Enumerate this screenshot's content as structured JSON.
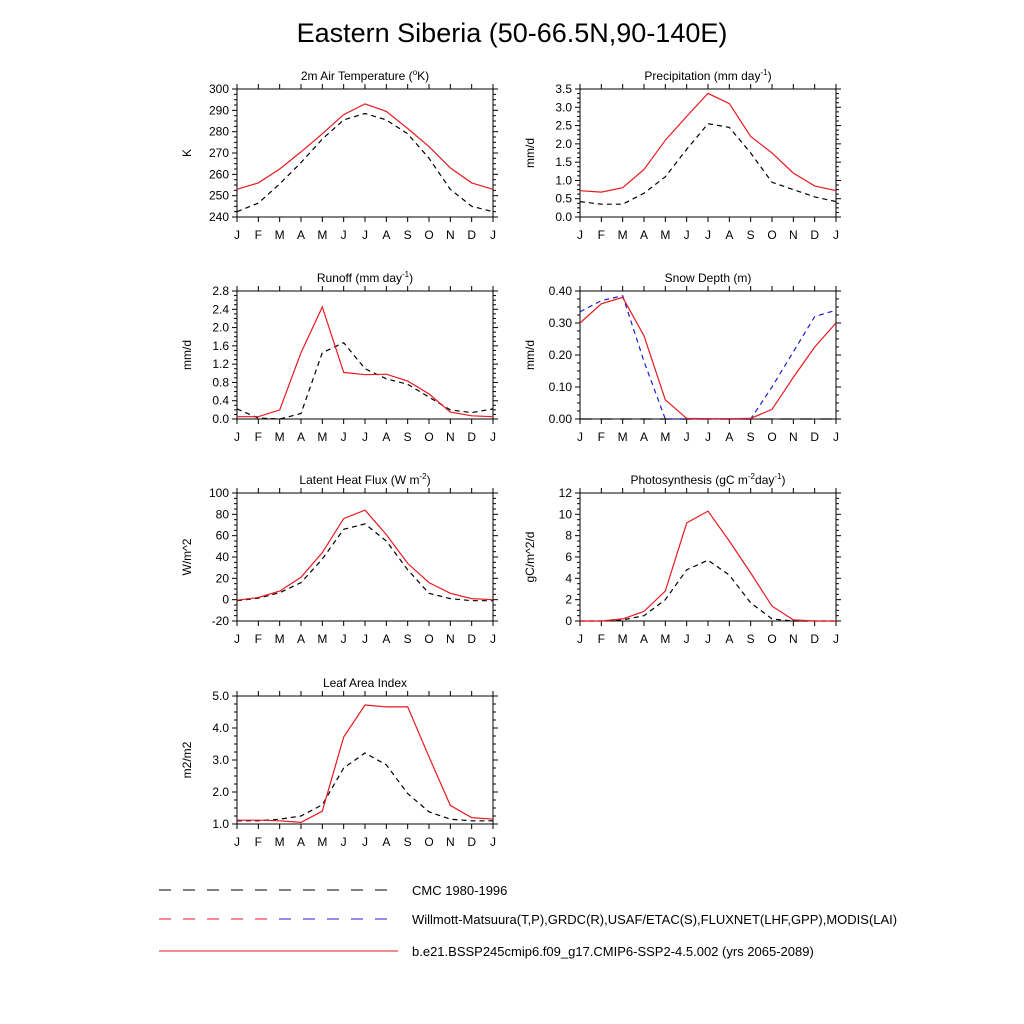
{
  "page": {
    "title": "Eastern Siberia (50-66.5N,90-140E)"
  },
  "colors": {
    "cmc": "#000000",
    "obs_black": "#000000",
    "obs_blue": "#1f1fd6",
    "model": "#e8191f"
  },
  "months": [
    "J",
    "F",
    "M",
    "A",
    "M",
    "J",
    "J",
    "A",
    "S",
    "O",
    "N",
    "D",
    "J"
  ],
  "legend": {
    "cmc_label": "CMC 1980-1996",
    "obs_label": "Willmott-Matsuura(T,P),GRDC(R),USAF/ETAC(S),FLUXNET(LHF,GPP),MODIS(LAI)",
    "model_label": "b.e21.BSSP245cmip6.f09_g17.CMIP6-SSP2-4.5.002 (yrs 2065-2089)"
  },
  "chart_data": [
    {
      "id": "temp",
      "type": "line",
      "title_parts": [
        {
          "t": "2m Air Temperature ("
        },
        {
          "t": "o",
          "sup": true
        },
        {
          "t": "K)"
        }
      ],
      "ylabel": "K",
      "ylim": [
        240,
        300
      ],
      "yticks": [
        240,
        250,
        260,
        270,
        280,
        290,
        300
      ],
      "ytick_labels": [
        "240",
        "250",
        "260",
        "270",
        "280",
        "290",
        "300"
      ],
      "series": [
        {
          "role": "obs",
          "style": "dash",
          "color": "black",
          "values": [
            242.5,
            246.5,
            255.5,
            265.5,
            276.5,
            285.5,
            288.5,
            285.5,
            279,
            267.5,
            253,
            245,
            242.5
          ]
        },
        {
          "role": "model",
          "style": "solid",
          "color": "model",
          "values": [
            253,
            256,
            262.5,
            270.5,
            279,
            288,
            293,
            289.5,
            281.5,
            273,
            263,
            256,
            253
          ]
        }
      ]
    },
    {
      "id": "precip",
      "type": "line",
      "title_parts": [
        {
          "t": "Precipitation (mm day"
        },
        {
          "t": "-1",
          "sup": true
        },
        {
          "t": ")"
        }
      ],
      "ylabel": "mm/d",
      "ylim": [
        0,
        3.5
      ],
      "yticks": [
        0,
        0.5,
        1.0,
        1.5,
        2.0,
        2.5,
        3.0,
        3.5
      ],
      "ytick_labels": [
        "0.0",
        "0.5",
        "1.0",
        "1.5",
        "2.0",
        "2.5",
        "3.0",
        "3.5"
      ],
      "series": [
        {
          "role": "obs",
          "style": "dash",
          "color": "black",
          "values": [
            0.42,
            0.35,
            0.35,
            0.65,
            1.1,
            1.85,
            2.55,
            2.45,
            1.75,
            0.95,
            0.75,
            0.55,
            0.42
          ]
        },
        {
          "role": "model",
          "style": "solid",
          "color": "model",
          "values": [
            0.72,
            0.68,
            0.8,
            1.3,
            2.1,
            2.75,
            3.38,
            3.1,
            2.2,
            1.75,
            1.2,
            0.85,
            0.72
          ]
        }
      ]
    },
    {
      "id": "runoff",
      "type": "line",
      "title_parts": [
        {
          "t": "Runoff (mm day"
        },
        {
          "t": "-1",
          "sup": true
        },
        {
          "t": ")"
        }
      ],
      "ylabel": "mm/d",
      "ylim": [
        0,
        2.8
      ],
      "yticks": [
        0,
        0.4,
        0.8,
        1.2,
        1.6,
        2.0,
        2.4,
        2.8
      ],
      "ytick_labels": [
        "0.0",
        "0.4",
        "0.8",
        "1.2",
        "1.6",
        "2.0",
        "2.4",
        "2.8"
      ],
      "series": [
        {
          "role": "obs",
          "style": "dash",
          "color": "black",
          "values": [
            0.22,
            0.02,
            0.0,
            0.12,
            1.45,
            1.67,
            1.1,
            0.88,
            0.76,
            0.48,
            0.2,
            0.14,
            0.22
          ]
        },
        {
          "role": "model",
          "style": "solid",
          "color": "model",
          "values": [
            0.05,
            0.05,
            0.2,
            1.45,
            2.45,
            1.02,
            0.97,
            0.98,
            0.83,
            0.55,
            0.15,
            0.07,
            0.05
          ]
        }
      ]
    },
    {
      "id": "snow",
      "type": "line",
      "title_parts": [
        {
          "t": "Snow Depth (m)"
        }
      ],
      "ylabel": "mm/d",
      "ylim": [
        0,
        0.4
      ],
      "yticks": [
        0,
        0.1,
        0.2,
        0.3,
        0.4
      ],
      "ytick_labels": [
        "0.00",
        "0.10",
        "0.20",
        "0.30",
        "0.40"
      ],
      "series": [
        {
          "role": "cmc",
          "style": "longdash",
          "color": "black",
          "values": [
            0,
            0,
            0,
            0,
            0,
            0,
            0,
            0,
            0,
            0,
            0,
            0,
            0
          ]
        },
        {
          "role": "obs",
          "style": "dash",
          "color": "obs_blue",
          "values": [
            0.335,
            0.37,
            0.385,
            0.18,
            0.0,
            0.0,
            0.0,
            0.0,
            0.0,
            0.1,
            0.21,
            0.32,
            0.34
          ]
        },
        {
          "role": "model",
          "style": "solid",
          "color": "model",
          "values": [
            0.3,
            0.36,
            0.38,
            0.26,
            0.06,
            0.002,
            0.001,
            0.001,
            0.002,
            0.03,
            0.13,
            0.225,
            0.3
          ]
        }
      ]
    },
    {
      "id": "lhf",
      "type": "line",
      "title_parts": [
        {
          "t": "Latent Heat Flux (W m"
        },
        {
          "t": "-2",
          "sup": true
        },
        {
          "t": ")"
        }
      ],
      "ylabel": "W/m^2",
      "ylim": [
        -20,
        100
      ],
      "yticks": [
        -20,
        0,
        20,
        40,
        60,
        80,
        100
      ],
      "ytick_labels": [
        "-20",
        "0",
        "20",
        "40",
        "60",
        "80",
        "100"
      ],
      "series": [
        {
          "role": "obs",
          "style": "dash",
          "color": "black",
          "values": [
            -1,
            1.5,
            6.5,
            16,
            38,
            66,
            71,
            55,
            28,
            6,
            1,
            -1,
            -1
          ]
        },
        {
          "role": "model",
          "style": "solid",
          "color": "model",
          "values": [
            -0.5,
            2,
            8,
            21,
            44,
            76,
            84,
            61,
            34,
            16,
            6,
            1,
            0
          ]
        }
      ]
    },
    {
      "id": "gpp",
      "type": "line",
      "title_parts": [
        {
          "t": "Photosynthesis (gC m"
        },
        {
          "t": "-2",
          "sup": true
        },
        {
          "t": "day"
        },
        {
          "t": "-1",
          "sup": true
        },
        {
          "t": ")"
        }
      ],
      "ylabel": "gC/m^2/d",
      "ylim": [
        0,
        12
      ],
      "yticks": [
        0,
        2,
        4,
        6,
        8,
        10,
        12
      ],
      "ytick_labels": [
        "0",
        "2",
        "4",
        "6",
        "8",
        "10",
        "12"
      ],
      "series": [
        {
          "role": "obs",
          "style": "dash",
          "color": "black",
          "values": [
            0,
            0,
            0.1,
            0.5,
            2.0,
            4.8,
            5.7,
            4.3,
            1.7,
            0.2,
            0.0,
            0,
            0
          ]
        },
        {
          "role": "model",
          "style": "solid",
          "color": "model",
          "values": [
            0,
            0,
            0.2,
            0.9,
            2.8,
            9.2,
            10.3,
            7.5,
            4.5,
            1.4,
            0.1,
            0,
            0
          ]
        }
      ]
    },
    {
      "id": "lai",
      "type": "line",
      "title_parts": [
        {
          "t": "Leaf Area Index"
        }
      ],
      "ylabel": "m2/m2",
      "ylim": [
        1.0,
        5.0
      ],
      "yticks": [
        1.0,
        2.0,
        3.0,
        4.0,
        5.0
      ],
      "ytick_labels": [
        "1.0",
        "2.0",
        "3.0",
        "4.0",
        "5.0"
      ],
      "series": [
        {
          "role": "obs",
          "style": "dash",
          "color": "black",
          "values": [
            1.1,
            1.1,
            1.15,
            1.25,
            1.6,
            2.75,
            3.22,
            2.85,
            1.95,
            1.38,
            1.15,
            1.1,
            1.1
          ]
        },
        {
          "role": "model",
          "style": "solid",
          "color": "model",
          "values": [
            1.12,
            1.12,
            1.1,
            1.05,
            1.4,
            3.72,
            4.72,
            4.66,
            4.66,
            3.1,
            1.58,
            1.2,
            1.15
          ]
        }
      ]
    }
  ]
}
